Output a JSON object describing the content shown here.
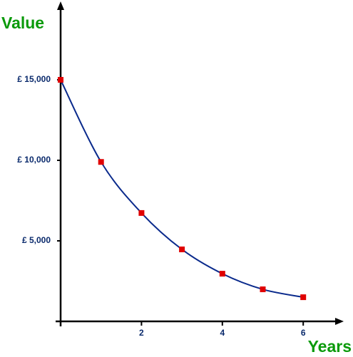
{
  "chart_data": {
    "type": "line",
    "y_label": "Value",
    "x_label": "Years",
    "x": [
      0,
      1,
      2,
      3,
      4,
      5,
      6
    ],
    "series": [
      {
        "color": "#0a2a8c",
        "marker_color": "#e00000",
        "values": [
          15000,
          9900,
          6730,
          4470,
          2960,
          1990,
          1500
        ]
      }
    ],
    "xlim": [
      0,
      6.9
    ],
    "ylim": [
      0,
      19700
    ],
    "xticks": [
      2,
      4,
      6
    ],
    "yticks": [
      {
        "value": 5000,
        "label": "£ 5,000"
      },
      {
        "value": 10000,
        "label": "£ 10,000"
      },
      {
        "value": 15000,
        "label": "£ 15,000"
      }
    ],
    "smooth": true
  }
}
